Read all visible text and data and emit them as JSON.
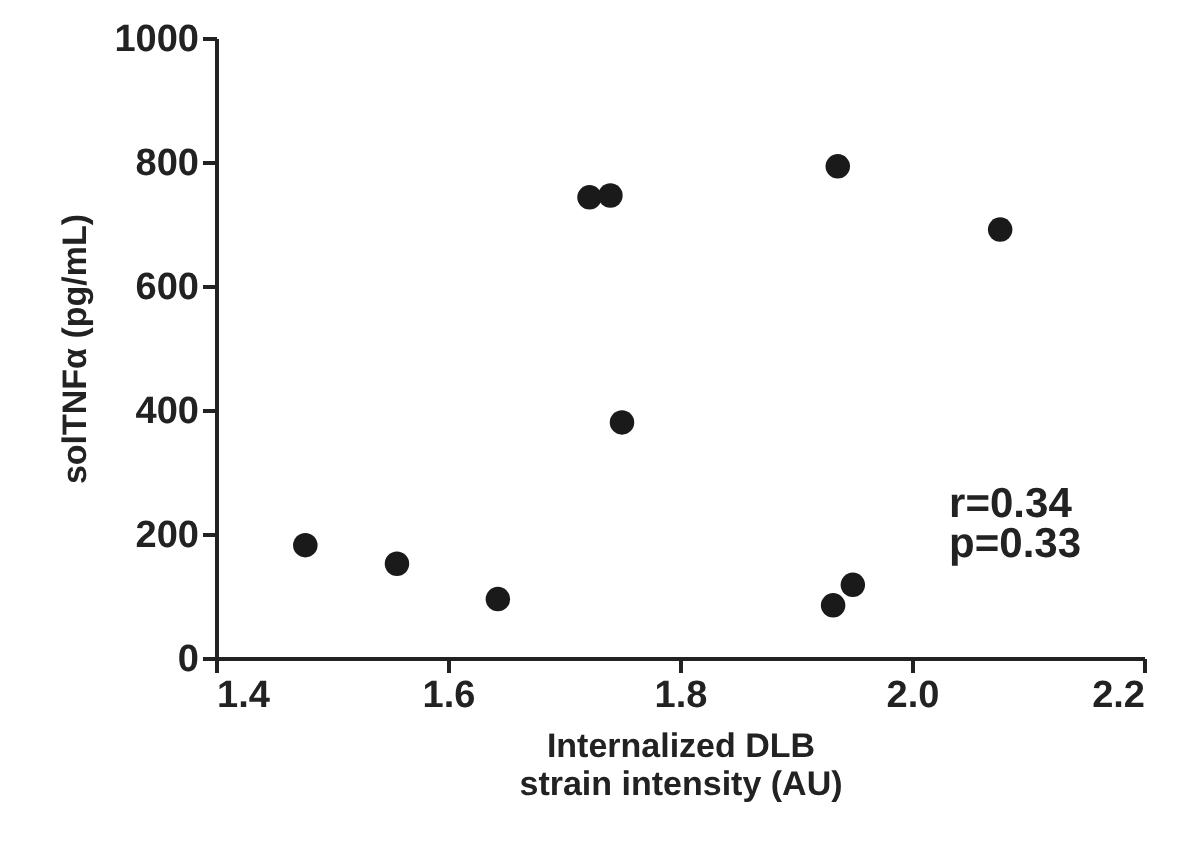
{
  "chart_data": {
    "type": "scatter",
    "xlabel": "Internalized DLB\nstrain intensity (AU)",
    "ylabel": "solTNFα (pg/mL)",
    "x": [
      1.477,
      1.556,
      1.643,
      1.722,
      1.74,
      1.75,
      1.936,
      2.076,
      1.932,
      1.949
    ],
    "values": [
      182,
      152,
      95,
      743,
      746,
      380,
      793,
      691,
      85,
      118
    ],
    "color": "#1a1a1a",
    "marker": "circle",
    "xlim": [
      1.4,
      2.2
    ],
    "xticks": [
      {
        "value": 1.4,
        "label": "1.4"
      },
      {
        "value": 1.6,
        "label": "1.6"
      },
      {
        "value": 1.8,
        "label": "1.8"
      },
      {
        "value": 2.0,
        "label": "2.0"
      },
      {
        "value": 2.2,
        "label": "2.2"
      }
    ],
    "ylim": [
      0,
      1000
    ],
    "yticks": [
      0,
      200,
      400,
      600,
      800,
      1000
    ],
    "grid": false,
    "annotations": [
      "r=0.34",
      "p=0.33"
    ]
  }
}
